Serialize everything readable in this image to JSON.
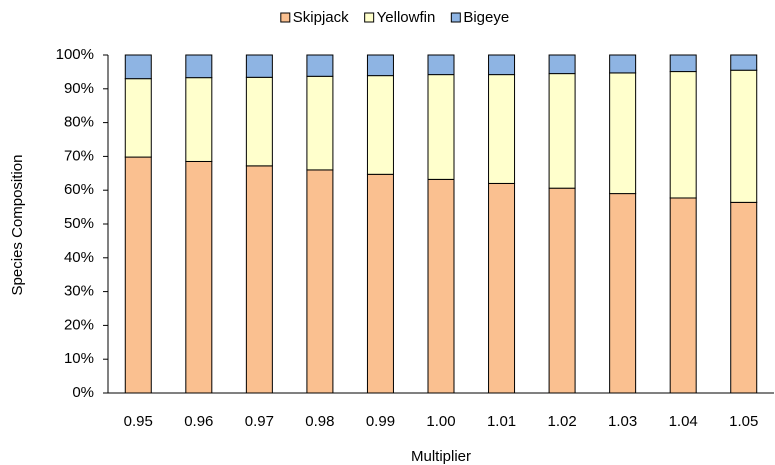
{
  "chart_data": {
    "type": "stacked_bar",
    "x_label": "Multiplier",
    "y_label": "Species Composition",
    "categories": [
      "0.95",
      "0.96",
      "0.97",
      "0.98",
      "0.99",
      "1.00",
      "1.01",
      "1.02",
      "1.03",
      "1.04",
      "1.05"
    ],
    "series": [
      {
        "name": "Skipjack",
        "color": "#fac090",
        "values": [
          69.8,
          68.5,
          67.2,
          66.0,
          64.7,
          63.2,
          62.0,
          60.6,
          59.0,
          57.7,
          56.4
        ]
      },
      {
        "name": "Yellowfin",
        "color": "#ffffcc",
        "values": [
          23.2,
          24.8,
          26.2,
          27.7,
          29.2,
          31.0,
          32.2,
          33.9,
          35.7,
          37.4,
          39.1
        ]
      },
      {
        "name": "Bigeye",
        "color": "#8eb4e3",
        "values": [
          7.0,
          6.7,
          6.6,
          6.3,
          6.1,
          5.8,
          5.8,
          5.5,
          5.3,
          4.9,
          4.5
        ]
      }
    ],
    "ylim": [
      0,
      100
    ],
    "yticks": [
      {
        "value": 0,
        "label": "0%"
      },
      {
        "value": 10,
        "label": "10%"
      },
      {
        "value": 20,
        "label": "20%"
      },
      {
        "value": 30,
        "label": "30%"
      },
      {
        "value": 40,
        "label": "40%"
      },
      {
        "value": 50,
        "label": "50%"
      },
      {
        "value": 60,
        "label": "60%"
      },
      {
        "value": 70,
        "label": "70%"
      },
      {
        "value": 80,
        "label": "80%"
      },
      {
        "value": 90,
        "label": "90%"
      },
      {
        "value": 100,
        "label": "100%"
      }
    ],
    "legend": "top"
  }
}
